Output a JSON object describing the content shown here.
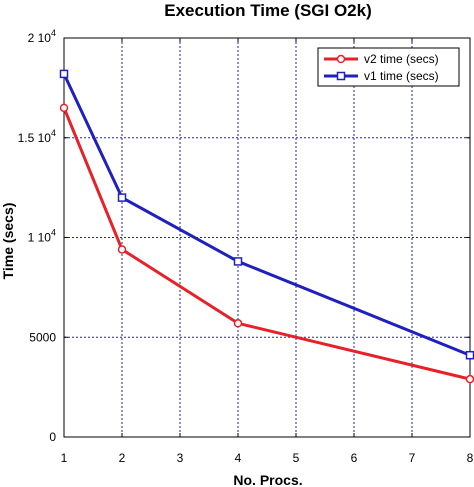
{
  "chart_data": {
    "type": "line",
    "title": "Execution Time (SGI O2k)",
    "xlabel": "No. Procs.",
    "ylabel": "Time (secs)",
    "xlim": [
      1,
      8
    ],
    "ylim": [
      0,
      20000
    ],
    "x_ticks": [
      "1",
      "2",
      "3",
      "4",
      "5",
      "6",
      "7",
      "8"
    ],
    "y_ticks": [
      {
        "value": 0,
        "label": "0",
        "exp": ""
      },
      {
        "value": 5000,
        "label": "5000",
        "exp": ""
      },
      {
        "value": 10000,
        "label": "1 10",
        "exp": "4"
      },
      {
        "value": 15000,
        "label": "1.5 10",
        "exp": "4"
      },
      {
        "value": 20000,
        "label": "2 10",
        "exp": "4"
      }
    ],
    "grid": true,
    "legend_position": "top-right",
    "series": [
      {
        "name": "v2 time (secs)",
        "color": "#e8202a",
        "marker": "circle",
        "x": [
          1,
          2,
          4,
          8
        ],
        "y": [
          16500,
          9400,
          5700,
          2900
        ]
      },
      {
        "name": "v1 time (secs)",
        "color": "#2020c0",
        "marker": "square",
        "x": [
          1,
          2,
          4,
          8
        ],
        "y": [
          18200,
          12000,
          8800,
          4100
        ]
      }
    ]
  }
}
